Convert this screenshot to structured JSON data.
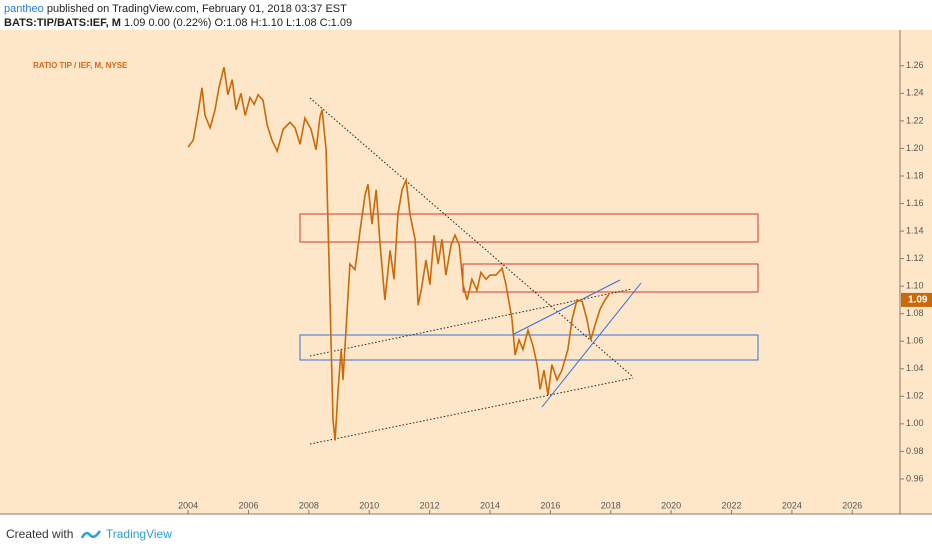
{
  "header": {
    "user": "pantheo",
    "published": "published on TradingView.com, February 01, 2018 03:37 EST",
    "symbol": "BATS:TIP/BATS:IEF, M",
    "quote": "1.09 0.00 (0.22%) O:1.08 H:1.10 L:1.08 C:1.09"
  },
  "footer": {
    "created": "Created with",
    "brand": "TradingView"
  },
  "chart_data": {
    "type": "line",
    "annotation": "RATIO TIP / IEF, M, NYSE",
    "color": "#c8690a",
    "x": [
      2004.0,
      2004.17,
      2004.33,
      2004.46,
      2004.56,
      2004.73,
      2004.89,
      2005.03,
      2005.19,
      2005.32,
      2005.46,
      2005.59,
      2005.75,
      2005.89,
      2006.05,
      2006.19,
      2006.32,
      2006.48,
      2006.62,
      2006.78,
      2006.95,
      2007.15,
      2007.38,
      2007.54,
      2007.71,
      2007.87,
      2008.07,
      2008.24,
      2008.37,
      2008.44,
      2008.57,
      2008.7,
      2008.8,
      2008.87,
      2008.97,
      2009.07,
      2009.13,
      2009.23,
      2009.36,
      2009.53,
      2009.7,
      2009.86,
      2009.96,
      2010.09,
      2010.23,
      2010.36,
      2010.52,
      2010.69,
      2010.82,
      2010.95,
      2011.09,
      2011.22,
      2011.35,
      2011.52,
      2011.62,
      2011.72,
      2011.88,
      2012.01,
      2012.15,
      2012.28,
      2012.41,
      2012.54,
      2012.71,
      2012.84,
      2012.98,
      2013.11,
      2013.24,
      2013.4,
      2013.57,
      2013.7,
      2013.87,
      2014.0,
      2014.2,
      2014.4,
      2014.53,
      2014.73,
      2014.83,
      2014.96,
      2015.09,
      2015.26,
      2015.42,
      2015.56,
      2015.66,
      2015.79,
      2015.92,
      2016.05,
      2016.22,
      2016.38,
      2016.58,
      2016.72,
      2016.88,
      2017.05,
      2017.21,
      2017.34,
      2017.48,
      2017.64,
      2017.81,
      2017.94
    ],
    "values": [
      1.201,
      1.206,
      1.226,
      1.244,
      1.224,
      1.215,
      1.228,
      1.245,
      1.259,
      1.239,
      1.25,
      1.228,
      1.24,
      1.224,
      1.237,
      1.232,
      1.239,
      1.235,
      1.217,
      1.206,
      1.198,
      1.214,
      1.219,
      1.215,
      1.203,
      1.222,
      1.214,
      1.199,
      1.223,
      1.228,
      1.199,
      1.09,
      1.003,
      0.988,
      1.025,
      1.054,
      1.032,
      1.068,
      1.116,
      1.112,
      1.141,
      1.166,
      1.174,
      1.145,
      1.17,
      1.13,
      1.09,
      1.126,
      1.105,
      1.152,
      1.17,
      1.177,
      1.152,
      1.134,
      1.086,
      1.097,
      1.119,
      1.101,
      1.137,
      1.116,
      1.134,
      1.108,
      1.13,
      1.137,
      1.13,
      1.101,
      1.09,
      1.105,
      1.097,
      1.11,
      1.105,
      1.108,
      1.108,
      1.113,
      1.101,
      1.076,
      1.05,
      1.061,
      1.054,
      1.068,
      1.057,
      1.043,
      1.025,
      1.039,
      1.021,
      1.043,
      1.032,
      1.039,
      1.054,
      1.076,
      1.09,
      1.089,
      1.076,
      1.061,
      1.072,
      1.083,
      1.09,
      1.094
    ],
    "xlim": [
      1997.77,
      2027.58
    ],
    "ylim": [
      0.936,
      1.286
    ],
    "xticks": [
      2004,
      2006,
      2008,
      2010,
      2012,
      2014,
      2016,
      2018,
      2020,
      2022,
      2024,
      2026
    ],
    "yticks": [
      {
        "value": 0.96,
        "label": "0.96"
      },
      {
        "value": 0.98,
        "label": "0.98"
      },
      {
        "value": 1.0,
        "label": "1.00"
      },
      {
        "value": 1.02,
        "label": "1.02"
      },
      {
        "value": 1.04,
        "label": "1.04"
      },
      {
        "value": 1.06,
        "label": "1.06"
      },
      {
        "value": 1.08,
        "label": "1.08"
      },
      {
        "value": 1.1,
        "label": "1.10"
      },
      {
        "value": 1.12,
        "label": "1.12"
      },
      {
        "value": 1.14,
        "label": "1.14"
      },
      {
        "value": 1.16,
        "label": "1.16"
      },
      {
        "value": 1.18,
        "label": "1.18"
      },
      {
        "value": 1.2,
        "label": "1.20"
      },
      {
        "value": 1.22,
        "label": "1.22"
      },
      {
        "value": 1.24,
        "label": "1.24"
      },
      {
        "value": 1.26,
        "label": "1.26"
      }
    ],
    "price_marker": {
      "value": 1.09,
      "label": "1.09"
    }
  }
}
